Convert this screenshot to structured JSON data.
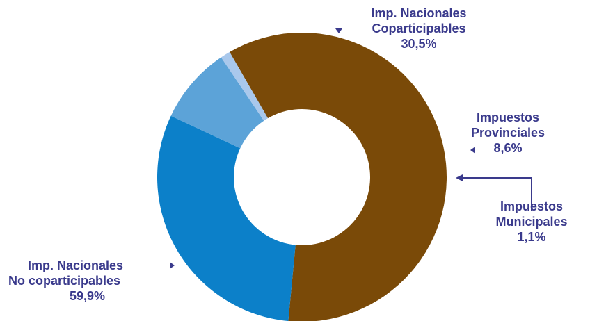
{
  "chart_data": {
    "type": "pie",
    "style": "donut",
    "colors": {
      "label_text": "#3a3a8c",
      "background": "#ffffff"
    },
    "slices": [
      {
        "key": "nacionales_coparticipables",
        "label_lines": [
          "Imp. Nacionales",
          "Coparticipables"
        ],
        "value": 30.5,
        "value_label": "30,5%",
        "color": "#0c80c9"
      },
      {
        "key": "provinciales",
        "label_lines": [
          "Impuestos",
          "Provinciales"
        ],
        "value": 8.6,
        "value_label": "8,6%",
        "color": "#5ca3d8"
      },
      {
        "key": "municipales",
        "label_lines": [
          "Impuestos",
          "Municipales"
        ],
        "value": 1.1,
        "value_label": "1,1%",
        "color": "#a9c8ec"
      },
      {
        "key": "nacionales_no_coparticipables",
        "label_lines": [
          "Imp. Nacionales",
          "No coparticipables"
        ],
        "value": 59.9,
        "value_label": "59,9%",
        "color": "#7a4a08"
      }
    ]
  }
}
